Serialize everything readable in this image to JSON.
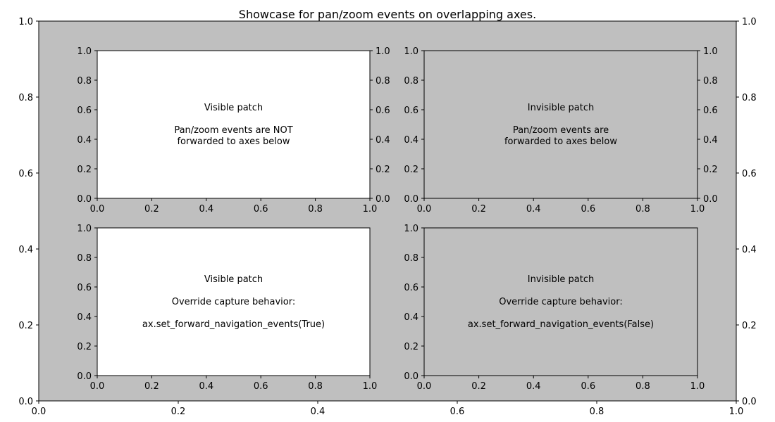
{
  "figure": {
    "title": "Showcase for pan/zoom events on overlapping axes."
  },
  "colors": {
    "figure_bg": "#ffffff",
    "gray_patch": "#bfbfbf",
    "white_patch": "#ffffff",
    "spine": "#000000"
  },
  "chart_data": [
    {
      "id": "background",
      "type": "empty-axes",
      "xlim": [
        0,
        1
      ],
      "ylim": [
        0,
        1
      ],
      "xticks": [
        "0.0",
        "0.2",
        "0.4",
        "0.6",
        "0.8",
        "1.0"
      ],
      "yticks": [
        "0.0",
        "0.2",
        "0.4",
        "0.6",
        "0.8",
        "1.0"
      ],
      "right_yticks": [
        "0.0",
        "0.2",
        "0.4",
        "0.6",
        "0.8",
        "1.0"
      ],
      "facecolor": "#bfbfbf",
      "texts": []
    },
    {
      "id": "top-left",
      "type": "empty-axes",
      "xlim": [
        0,
        1
      ],
      "ylim": [
        0,
        1
      ],
      "xticks": [
        "0.0",
        "0.2",
        "0.4",
        "0.6",
        "0.8",
        "1.0"
      ],
      "yticks": [
        "0.0",
        "0.2",
        "0.4",
        "0.6",
        "0.8",
        "1.0"
      ],
      "right_yticks": [
        "0.0",
        "0.2",
        "0.4",
        "0.6",
        "0.8",
        "1.0"
      ],
      "facecolor": "#ffffff",
      "texts": [
        "Visible patch",
        "",
        "Pan/zoom events are NOT",
        "forwarded to axes below"
      ]
    },
    {
      "id": "top-right",
      "type": "empty-axes",
      "xlim": [
        0,
        1
      ],
      "ylim": [
        0,
        1
      ],
      "xticks": [
        "0.0",
        "0.2",
        "0.4",
        "0.6",
        "0.8",
        "1.0"
      ],
      "yticks": [
        "0.0",
        "0.2",
        "0.4",
        "0.6",
        "0.8",
        "1.0"
      ],
      "right_yticks": [
        "0.0",
        "0.2",
        "0.4",
        "0.6",
        "0.8",
        "1.0"
      ],
      "facecolor": "none",
      "texts": [
        "Invisible patch",
        "",
        "Pan/zoom events are",
        "forwarded to axes below"
      ]
    },
    {
      "id": "bottom-left",
      "type": "empty-axes",
      "xlim": [
        0,
        1
      ],
      "ylim": [
        0,
        1
      ],
      "xticks": [
        "0.0",
        "0.2",
        "0.4",
        "0.6",
        "0.8",
        "1.0"
      ],
      "yticks": [
        "0.0",
        "0.2",
        "0.4",
        "0.6",
        "0.8",
        "1.0"
      ],
      "right_yticks": [],
      "facecolor": "#ffffff",
      "texts": [
        "Visible patch",
        "",
        "Override capture behavior:",
        "",
        "ax.set_forward_navigation_events(True)"
      ]
    },
    {
      "id": "bottom-right",
      "type": "empty-axes",
      "xlim": [
        0,
        1
      ],
      "ylim": [
        0,
        1
      ],
      "xticks": [
        "0.0",
        "0.2",
        "0.4",
        "0.6",
        "0.8",
        "1.0"
      ],
      "yticks": [
        "0.0",
        "0.2",
        "0.4",
        "0.6",
        "0.8",
        "1.0"
      ],
      "right_yticks": [],
      "facecolor": "none",
      "texts": [
        "Invisible patch",
        "",
        "Override capture behavior:",
        "",
        "ax.set_forward_navigation_events(False)"
      ]
    }
  ]
}
